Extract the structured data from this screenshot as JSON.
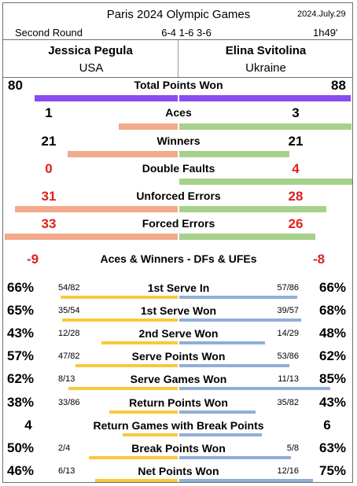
{
  "header": {
    "event": "Paris 2024 Olympic Games",
    "date": "2024.July.29",
    "round": "Second Round",
    "score": "6-4 1-6 3-6",
    "duration": "1h49'"
  },
  "players": {
    "left": {
      "name": "Jessica Pegula",
      "country": "USA"
    },
    "right": {
      "name": "Elina Svitolina",
      "country": "Ukraine"
    }
  },
  "colors": {
    "total_points": "#8a4cf0",
    "left_main": "#f2a98c",
    "right_main": "#a6d18a",
    "left_serve": "#f7c93c",
    "right_serve": "#8faed9",
    "highlight_red": "#e02020"
  },
  "main_stats": [
    {
      "label": "Total Points Won",
      "left": "80",
      "right": "88"
    },
    {
      "label": "Aces",
      "left": "1",
      "right": "3"
    },
    {
      "label": "Winners",
      "left": "21",
      "right": "21"
    },
    {
      "label": "Double Faults",
      "left": "0",
      "right": "4"
    },
    {
      "label": "Unforced Errors",
      "left": "31",
      "right": "28"
    },
    {
      "label": "Forced Errors",
      "left": "33",
      "right": "26"
    }
  ],
  "net_row": {
    "label": "Aces & Winners - DFs & UFEs",
    "left": "-9",
    "right": "-8"
  },
  "serve_stats": [
    {
      "label": "1st Serve In",
      "left_pct": "66%",
      "left_frac": "54/82",
      "right_pct": "66%",
      "right_frac": "57/86",
      "left_value": 0.659,
      "right_value": 0.663
    },
    {
      "label": "1st Serve Won",
      "left_pct": "65%",
      "left_frac": "35/54",
      "right_pct": "68%",
      "right_frac": "39/57",
      "left_value": 0.648,
      "right_value": 0.684
    },
    {
      "label": "2nd Serve Won",
      "left_pct": "43%",
      "left_frac": "12/28",
      "right_pct": "48%",
      "right_frac": "14/29",
      "left_value": 0.429,
      "right_value": 0.483
    },
    {
      "label": "Serve Points Won",
      "left_pct": "57%",
      "left_frac": "47/82",
      "right_pct": "62%",
      "right_frac": "53/86",
      "left_value": 0.573,
      "right_value": 0.616
    },
    {
      "label": "Serve Games Won",
      "left_pct": "62%",
      "left_frac": "8/13",
      "right_pct": "85%",
      "right_frac": "11/13",
      "left_value": 0.615,
      "right_value": 0.846
    },
    {
      "label": "Return Points Won",
      "left_pct": "38%",
      "left_frac": "33/86",
      "right_pct": "43%",
      "right_frac": "35/82",
      "left_value": 0.384,
      "right_value": 0.427
    },
    {
      "label": "Return Games with Break Points",
      "left_pct": "4",
      "left_frac": "",
      "right_pct": "6",
      "right_frac": "",
      "left_value": 0.308,
      "right_value": 0.462
    },
    {
      "label": "Break Points Won",
      "left_pct": "50%",
      "left_frac": "2/4",
      "right_pct": "63%",
      "right_frac": "5/8",
      "left_value": 0.5,
      "right_value": 0.625
    },
    {
      "label": "Net Points Won",
      "left_pct": "46%",
      "left_frac": "6/13",
      "right_pct": "75%",
      "right_frac": "12/16",
      "left_value": 0.462,
      "right_value": 0.75
    }
  ]
}
